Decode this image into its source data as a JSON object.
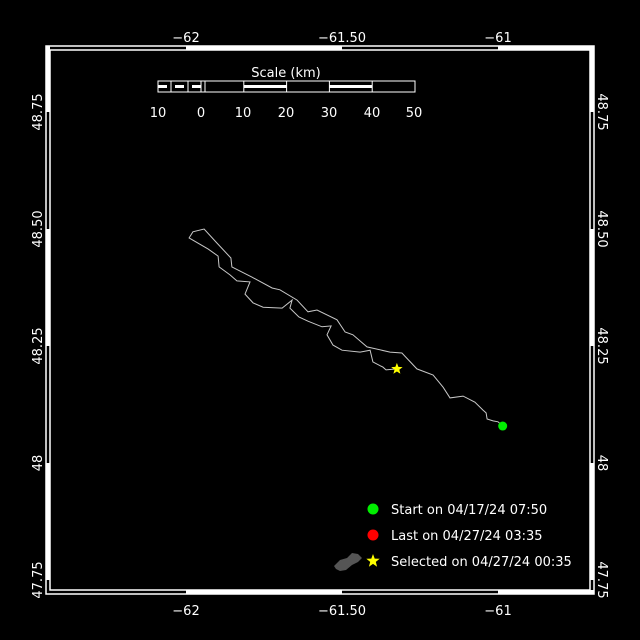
{
  "map": {
    "lon_range": [
      -62.45,
      -60.7
    ],
    "lat_range": [
      47.72,
      48.9
    ],
    "lon_ticks": [
      {
        "value": -62,
        "label": "−62"
      },
      {
        "value": -61.5,
        "label": "−61.50"
      },
      {
        "value": -61,
        "label": "−61"
      }
    ],
    "lat_ticks": [
      {
        "value": 48.75,
        "label": "48.75"
      },
      {
        "value": 48.5,
        "label": "48.50"
      },
      {
        "value": 48.25,
        "label": "48.25"
      },
      {
        "value": 48.0,
        "label": "48"
      },
      {
        "value": 47.75,
        "label": "47.75"
      }
    ],
    "colors": {
      "background": "#000000",
      "frame": "#ffffff",
      "track": "#c8c8c8",
      "start": "#00ee00",
      "last": "#ff0000",
      "selected": "#ffff00",
      "land": "#555555"
    }
  },
  "scale_bar": {
    "title": "Scale (km)",
    "labels": [
      "10",
      "0",
      "10",
      "20",
      "30",
      "40",
      "50"
    ]
  },
  "track": {
    "points": [
      [
        -60.985,
        48.079
      ],
      [
        -61.0,
        48.088
      ],
      [
        -61.016,
        48.09
      ],
      [
        -61.035,
        48.094
      ],
      [
        -61.038,
        48.107
      ],
      [
        -61.048,
        48.113
      ],
      [
        -61.074,
        48.13
      ],
      [
        -61.112,
        48.143
      ],
      [
        -61.154,
        48.139
      ],
      [
        -61.176,
        48.162
      ],
      [
        -61.208,
        48.188
      ],
      [
        -61.26,
        48.201
      ],
      [
        -61.308,
        48.235
      ],
      [
        -61.346,
        48.237
      ],
      [
        -61.42,
        48.248
      ],
      [
        -61.465,
        48.274
      ],
      [
        -61.49,
        48.28
      ],
      [
        -61.516,
        48.306
      ],
      [
        -61.58,
        48.327
      ],
      [
        -61.609,
        48.323
      ],
      [
        -61.644,
        48.348
      ],
      [
        -61.699,
        48.37
      ],
      [
        -61.724,
        48.374
      ],
      [
        -61.788,
        48.397
      ],
      [
        -61.853,
        48.419
      ],
      [
        -61.856,
        48.438
      ],
      [
        -61.901,
        48.47
      ],
      [
        -61.942,
        48.5
      ],
      [
        -61.978,
        48.494
      ],
      [
        -61.99,
        48.481
      ],
      [
        -61.929,
        48.457
      ],
      [
        -61.897,
        48.442
      ],
      [
        -61.894,
        48.419
      ],
      [
        -61.859,
        48.402
      ],
      [
        -61.837,
        48.389
      ],
      [
        -61.795,
        48.387
      ],
      [
        -61.811,
        48.361
      ],
      [
        -61.785,
        48.342
      ],
      [
        -61.753,
        48.333
      ],
      [
        -61.692,
        48.331
      ],
      [
        -61.66,
        48.348
      ],
      [
        -61.667,
        48.331
      ],
      [
        -61.638,
        48.312
      ],
      [
        -61.609,
        48.303
      ],
      [
        -61.564,
        48.291
      ],
      [
        -61.535,
        48.293
      ],
      [
        -61.548,
        48.274
      ],
      [
        -61.529,
        48.252
      ],
      [
        -61.5,
        48.241
      ],
      [
        -61.442,
        48.237
      ],
      [
        -61.41,
        48.241
      ],
      [
        -61.401,
        48.216
      ],
      [
        -61.369,
        48.205
      ],
      [
        -61.359,
        48.199
      ],
      [
        -61.324,
        48.201
      ]
    ],
    "start": [
      -60.985,
      48.079
    ],
    "selected": [
      -61.324,
      48.201
    ]
  },
  "legend": {
    "start": "Start on 04/17/24 07:50",
    "last": "Last on 04/27/24 03:35",
    "selected": "Selected on 04/27/24 00:35"
  }
}
